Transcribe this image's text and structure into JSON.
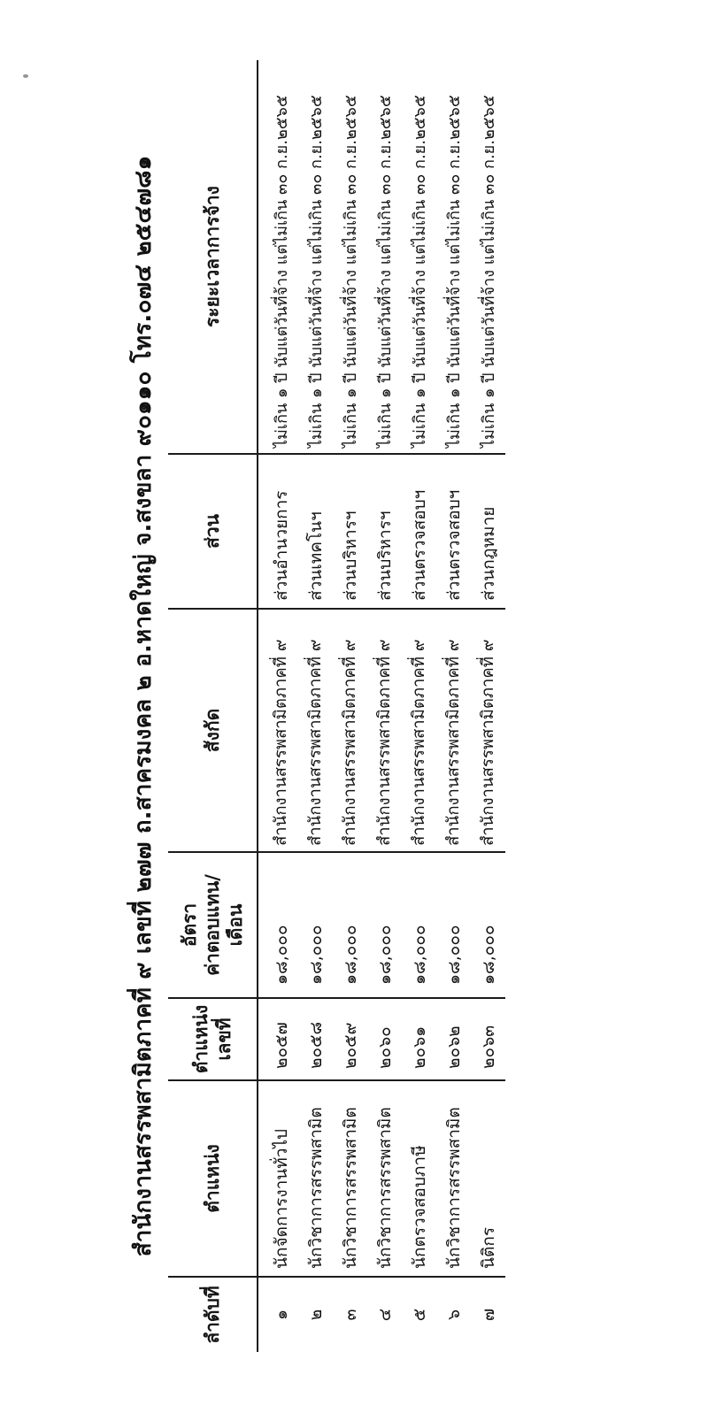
{
  "page": {
    "title": "สำนักงานสรรพสามิตภาคที่ ๙ เลขที่ ๒๗๗ ถ.สาครมงคล ๒ อ.หาดใหญ่ จ.สงขลา ๙๐๑๑๐ โทร.๐๗๔ ๒๕๔๗๘๑"
  },
  "table": {
    "headers": [
      "ลำดับที่",
      "ตำแหน่ง",
      "ตำแหน่ง\nเลขที่",
      "อัตรา\nค่าตอบแทน/\nเดือน",
      "สังกัด",
      "ส่วน",
      "ระยะเวลาการจ้าง"
    ],
    "rows": [
      [
        "๑",
        "นักจัดการงานทั่วไป",
        "๒๐๕๗",
        "๑๘,๐๐๐",
        "สำนักงานสรรพสามิตภาคที่ ๙",
        "ส่วนอำนวยการ",
        "ไม่เกิน ๑ ปี นับแต่วันที่จ้าง แต่ไม่เกิน ๓๐ ก.ย.๒๕๖๕"
      ],
      [
        "๒",
        "นักวิชาการสรรพสามิต",
        "๒๐๕๘",
        "๑๘,๐๐๐",
        "สำนักงานสรรพสามิตภาคที่ ๙",
        "ส่วนเทคโนฯ",
        "ไม่เกิน ๑ ปี นับแต่วันที่จ้าง แต่ไม่เกิน ๓๐ ก.ย.๒๕๖๕"
      ],
      [
        "๓",
        "นักวิชาการสรรพสามิต",
        "๒๐๕๙",
        "๑๘,๐๐๐",
        "สำนักงานสรรพสามิตภาคที่ ๙",
        "ส่วนบริหารฯ",
        "ไม่เกิน ๑ ปี นับแต่วันที่จ้าง แต่ไม่เกิน ๓๐ ก.ย.๒๕๖๕"
      ],
      [
        "๔",
        "นักวิชาการสรรพสามิต",
        "๒๐๖๐",
        "๑๘,๐๐๐",
        "สำนักงานสรรพสามิตภาคที่ ๙",
        "ส่วนบริหารฯ",
        "ไม่เกิน ๑ ปี นับแต่วันที่จ้าง แต่ไม่เกิน ๓๐ ก.ย.๒๕๖๕"
      ],
      [
        "๕",
        "นักตรวจสอบภาษี",
        "๒๐๖๑",
        "๑๘,๐๐๐",
        "สำนักงานสรรพสามิตภาคที่ ๙",
        "ส่วนตรวจสอบฯ",
        "ไม่เกิน ๑ ปี นับแต่วันที่จ้าง แต่ไม่เกิน ๓๐ ก.ย.๒๕๖๕"
      ],
      [
        "๖",
        "นักวิชาการสรรพสามิต",
        "๒๐๖๒",
        "๑๘,๐๐๐",
        "สำนักงานสรรพสามิตภาคที่ ๙",
        "ส่วนตรวจสอบฯ",
        "ไม่เกิน ๑ ปี นับแต่วันที่จ้าง แต่ไม่เกิน ๓๐ ก.ย.๒๕๖๕"
      ],
      [
        "๗",
        "นิติกร",
        "๒๐๖๓",
        "๑๘,๐๐๐",
        "สำนักงานสรรพสามิตภาคที่ ๙",
        "ส่วนกฎหมาย",
        "ไม่เกิน ๑ ปี นับแต่วันที่จ้าง แต่ไม่เกิน ๓๐ ก.ย.๒๕๖๕"
      ]
    ],
    "column_classes": [
      "c-idx",
      "c-pos",
      "c-posno",
      "c-rate",
      "c-org",
      "c-sec",
      "c-dur"
    ]
  },
  "colors": {
    "paper": "#ffffff",
    "ink": "#161616",
    "border": "#1b1b1b"
  }
}
